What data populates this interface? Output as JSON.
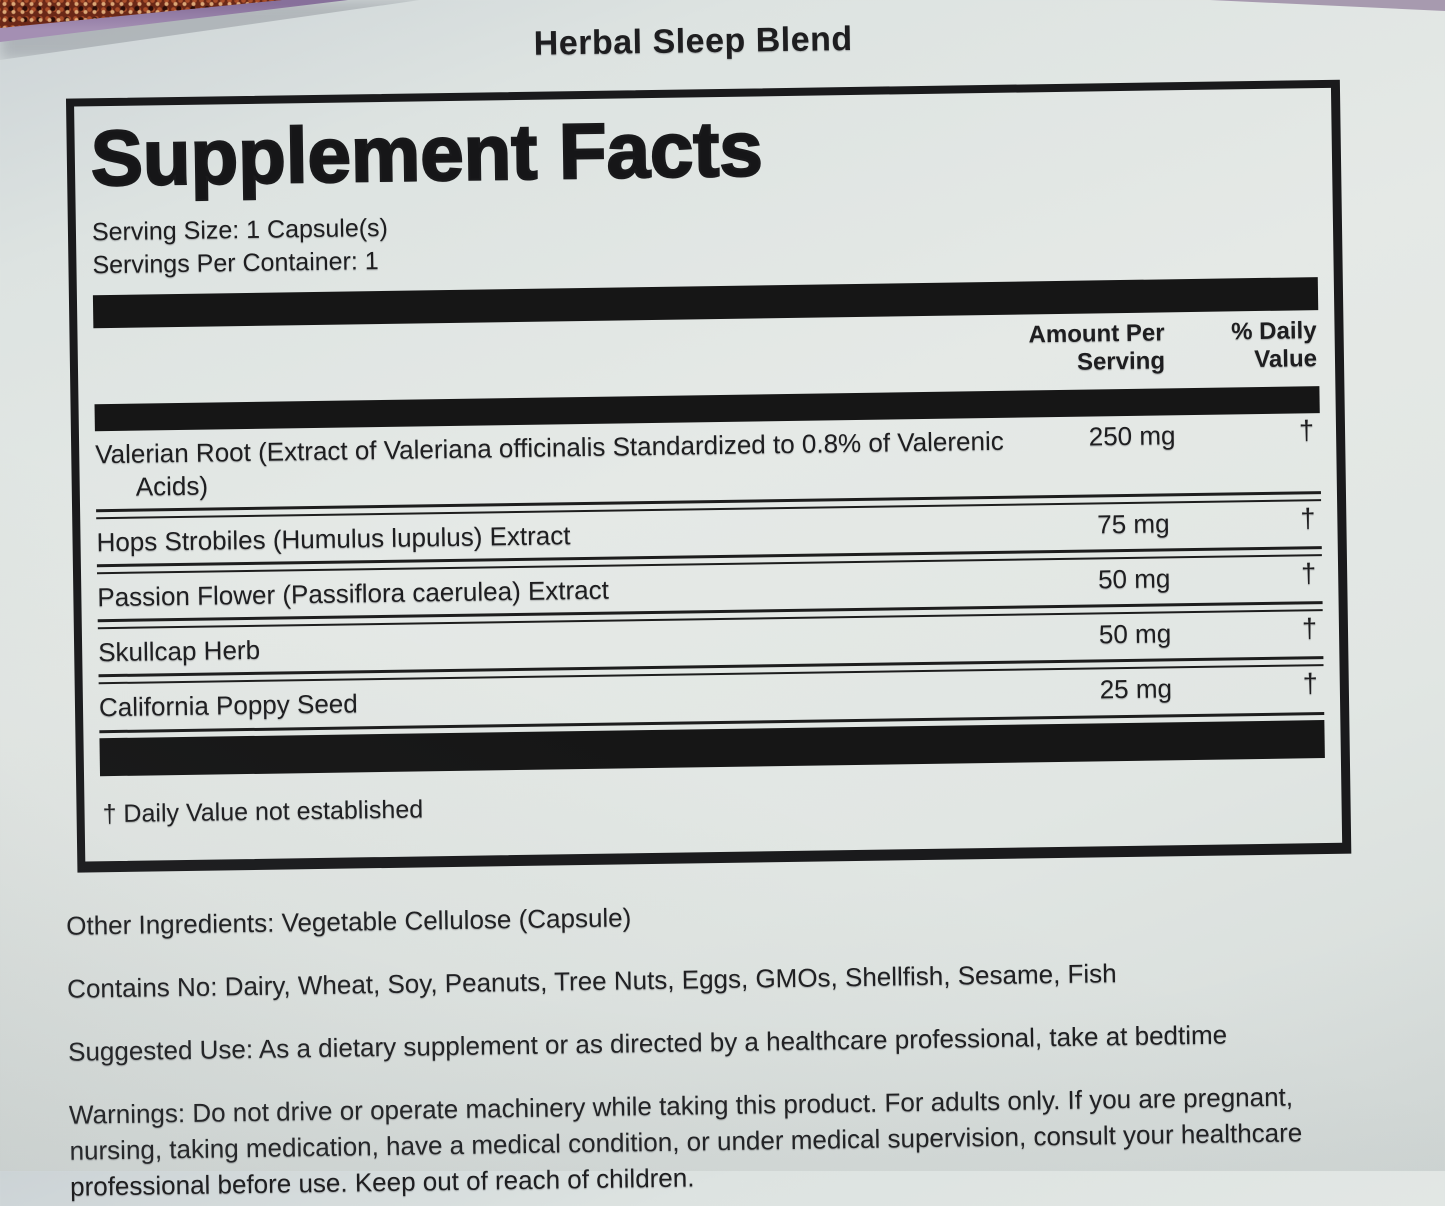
{
  "product": {
    "title": "Herbal Sleep Blend"
  },
  "panel": {
    "title": "Supplement Facts",
    "serving_size": "Serving Size: 1 Capsule(s)",
    "servings_per_container": "Servings Per Container: 1",
    "columns": {
      "amount_per_serving": "Amount Per Serving",
      "percent_daily_value": "% Daily Value"
    },
    "rows": [
      {
        "name": "Valerian Root (Extract of Valeriana officinalis Standardized to 0.8% of Valerenic Acids)",
        "amount": "250 mg",
        "dv": "†"
      },
      {
        "name": "Hops Strobiles (Humulus lupulus) Extract",
        "amount": "75 mg",
        "dv": "†"
      },
      {
        "name": "Passion Flower (Passiflora caerulea) Extract",
        "amount": "50 mg",
        "dv": "†"
      },
      {
        "name": "Skullcap Herb",
        "amount": "50 mg",
        "dv": "†"
      },
      {
        "name": "California Poppy Seed",
        "amount": "25 mg",
        "dv": "†"
      }
    ],
    "footnote": "† Daily Value not established"
  },
  "details": {
    "other_ingredients": "Other Ingredients: Vegetable Cellulose (Capsule)",
    "contains_no": "Contains No: Dairy, Wheat, Soy, Peanuts, Tree Nuts, Eggs, GMOs, Shellfish, Sesame, Fish",
    "suggested_use": "Suggested Use: As a dietary supplement or as directed by a healthcare professional, take at bedtime",
    "warnings": "Warnings: Do not drive or operate machinery while taking this product. For adults only. If you are pregnant, nursing, taking medication, have a medical condition, or under medical supervision, consult your healthcare professional before use. Keep out of reach of children."
  },
  "colors": {
    "paper": "#e2e7e4",
    "ink": "#1e1e20",
    "bar": "#161616",
    "carpet": "#6b2817",
    "package_edge_purple": "#a48fb3"
  }
}
